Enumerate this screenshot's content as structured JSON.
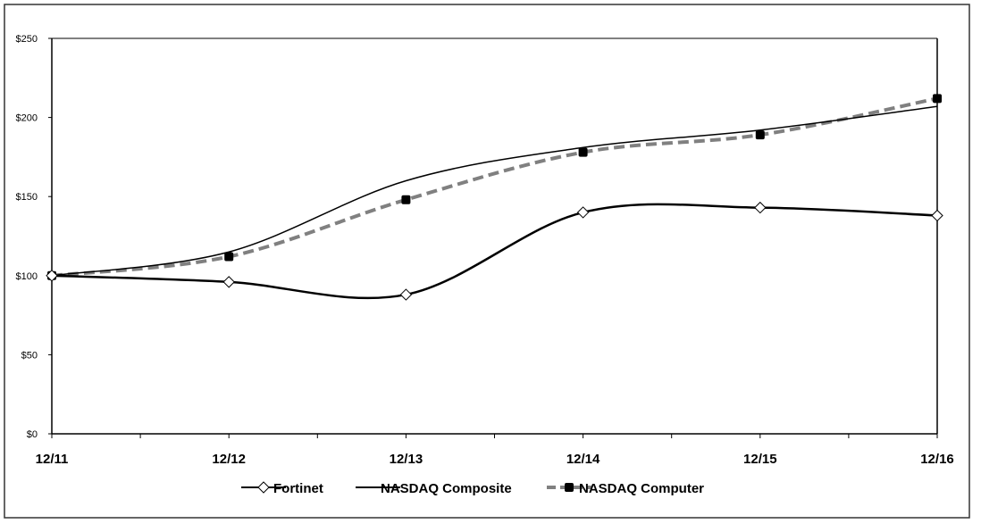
{
  "chart_data": {
    "type": "line",
    "title": "",
    "xlabel": "",
    "ylabel": "",
    "categories": [
      "12/11",
      "12/12",
      "12/13",
      "12/14",
      "12/15",
      "12/16"
    ],
    "ylim": [
      0,
      250
    ],
    "yticks": [
      0,
      50,
      100,
      150,
      200,
      250
    ],
    "ytick_labels": [
      "$0",
      "$50",
      "$100",
      "$150",
      "$200",
      "$250"
    ],
    "grid": false,
    "smooth": true,
    "legend_position": "bottom",
    "series": [
      {
        "name": "Fortinet",
        "values": [
          100,
          96,
          88,
          140,
          143,
          138
        ],
        "color": "#000000",
        "marker": "diamond-open",
        "dash": false
      },
      {
        "name": "NASDAQ Composite",
        "values": [
          100,
          115,
          160,
          181,
          192,
          207
        ],
        "color": "#000000",
        "marker": "none",
        "dash": false
      },
      {
        "name": "NASDAQ Computer",
        "values": [
          100,
          112,
          148,
          178,
          189,
          212
        ],
        "color": "#808080",
        "marker": "square-filled",
        "dash": true
      }
    ]
  }
}
